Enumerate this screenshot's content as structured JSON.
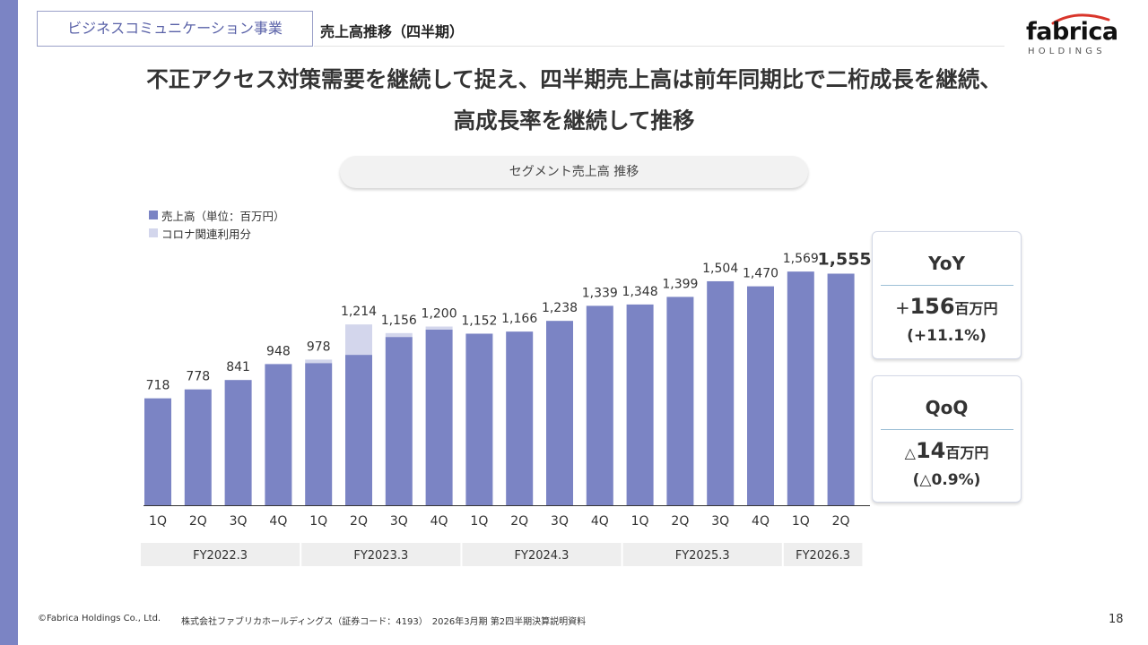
{
  "header": {
    "segment_tag": "ビジネスコミュニケーション事業",
    "topic": "売上高推移（四半期）"
  },
  "logo": {
    "word": "fabrica",
    "sub": "HOLDINGS"
  },
  "headline": {
    "line1": "不正アクセス対策需要を継続して捉え、四半期売上高は前年同期比で二桁成長を継続、",
    "line2": "高成長率を継続して推移"
  },
  "chart_pill": "セグメント売上高 推移",
  "legend": {
    "revenue": "売上高（単位：百万円）",
    "corona": "コロナ関連利用分"
  },
  "colors": {
    "revenue": "#7b84c4",
    "corona": "#d3d6ec",
    "sidebar": "#7b84c4",
    "fy_band": "#eeeeee"
  },
  "chart_data": {
    "type": "bar",
    "stacked": true,
    "categories": [
      "1Q",
      "2Q",
      "3Q",
      "4Q",
      "1Q",
      "2Q",
      "3Q",
      "4Q",
      "1Q",
      "2Q",
      "3Q",
      "4Q",
      "1Q",
      "2Q",
      "3Q",
      "4Q",
      "1Q",
      "2Q"
    ],
    "groups": [
      {
        "label": "FY2022.3",
        "span": 4
      },
      {
        "label": "FY2023.3",
        "span": 4
      },
      {
        "label": "FY2024.3",
        "span": 4
      },
      {
        "label": "FY2025.3",
        "span": 4
      },
      {
        "label": "FY2026.3",
        "span": 2
      }
    ],
    "series": [
      {
        "name": "売上高（単位：百万円）",
        "values": [
          718,
          778,
          841,
          948,
          955,
          1010,
          1130,
          1180,
          1152,
          1166,
          1238,
          1339,
          1348,
          1399,
          1504,
          1470,
          1569,
          1555
        ]
      },
      {
        "name": "コロナ関連利用分",
        "values": [
          0,
          0,
          0,
          0,
          23,
          204,
          26,
          20,
          0,
          0,
          0,
          0,
          0,
          0,
          0,
          0,
          0,
          0
        ]
      }
    ],
    "totals": [
      718,
      778,
      841,
      948,
      978,
      1214,
      1156,
      1200,
      1152,
      1166,
      1238,
      1339,
      1348,
      1399,
      1504,
      1470,
      1569,
      1555
    ],
    "total_labels": [
      "718",
      "778",
      "841",
      "948",
      "978",
      "1,214",
      "1,156",
      "1,200",
      "1,152",
      "1,166",
      "1,238",
      "1,339",
      "1,348",
      "1,399",
      "1,504",
      "1,470",
      "1,569",
      "1,555"
    ],
    "highlight_index": 17,
    "ylim": [
      0,
      1600
    ],
    "xlabel": "",
    "ylabel": "",
    "title": "セグメント売上高 推移"
  },
  "kpi": {
    "yoy": {
      "title": "YoY",
      "prefix": "＋",
      "value": "156",
      "unit": "百万円",
      "sub": "(+11.1%)"
    },
    "qoq": {
      "title": "QoQ",
      "prefix": "△",
      "value": "14",
      "unit": "百万円",
      "sub": "(△0.9%)"
    }
  },
  "footer": {
    "copyright": "©Fabrica Holdings Co., Ltd.",
    "description": "株式会社ファブリカホールディングス（証券コード：4193）　2026年3月期 第2四半期決算説明資料",
    "page": "18"
  }
}
